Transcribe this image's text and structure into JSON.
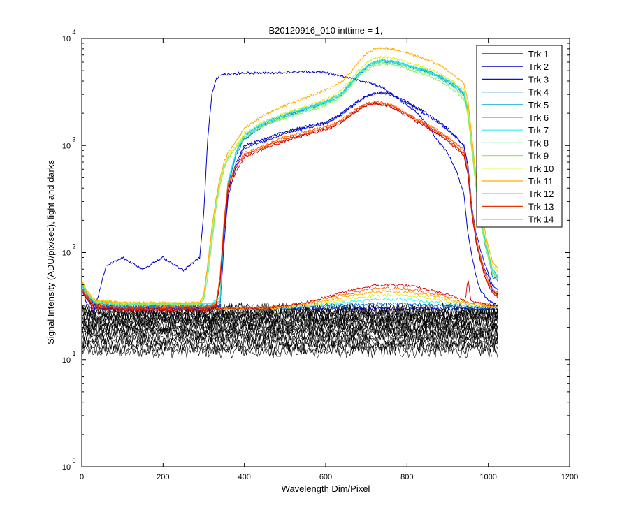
{
  "chart_data": {
    "type": "line",
    "title": "B20120916_010 inttime = 1,",
    "xlabel": "Wavelength Dim/Pixel",
    "ylabel": "Signal Intensity (ADU/pix/sec), light and darks",
    "xlim": [
      0,
      1200
    ],
    "ylim": [
      1,
      10000
    ],
    "yscale": "log",
    "x_ticks": [
      0,
      200,
      400,
      600,
      800,
      1000,
      1200
    ],
    "x_tick_labels": [
      "0",
      "200",
      "400",
      "600",
      "800",
      "1000",
      "1200"
    ],
    "y_ticks": [
      1,
      10,
      100,
      1000,
      10000
    ],
    "y_tick_labels": [
      {
        "base": "10",
        "exp": "0"
      },
      {
        "base": "10",
        "exp": "1"
      },
      {
        "base": "10",
        "exp": "2"
      },
      {
        "base": "10",
        "exp": "3"
      },
      {
        "base": "10",
        "exp": "4"
      }
    ],
    "legend_position": "top-right",
    "x": [
      0,
      10,
      30,
      60,
      100,
      150,
      200,
      250,
      290,
      300,
      310,
      320,
      330,
      340,
      350,
      360,
      380,
      400,
      450,
      500,
      550,
      600,
      620,
      640,
      660,
      680,
      700,
      720,
      740,
      760,
      780,
      800,
      820,
      840,
      860,
      880,
      900,
      920,
      940,
      950,
      960,
      970,
      980,
      990,
      1000,
      1010,
      1024
    ],
    "series": [
      {
        "name": "Trk 1",
        "color": "#0000aa",
        "values": [
          45,
          40,
          33,
          32,
          31,
          31,
          31,
          31,
          31,
          31,
          31,
          31,
          31,
          32,
          150,
          380,
          700,
          1000,
          1150,
          1350,
          1500,
          1650,
          1800,
          2000,
          2300,
          2600,
          2900,
          3100,
          3150,
          3050,
          2800,
          2550,
          2300,
          2100,
          1850,
          1650,
          1450,
          1200,
          1000,
          650,
          250,
          130,
          90,
          70,
          60,
          45,
          40
        ]
      },
      {
        "name": "Trk 2",
        "color": "#0000cc",
        "values": [
          55,
          35,
          28,
          75,
          90,
          70,
          90,
          68,
          90,
          230,
          1200,
          3000,
          4200,
          4500,
          4600,
          4600,
          4700,
          4750,
          4750,
          4800,
          4900,
          4800,
          4600,
          4400,
          4300,
          4100,
          3900,
          3700,
          3500,
          3100,
          2700,
          2400,
          2100,
          1750,
          1350,
          1050,
          850,
          600,
          350,
          150,
          90,
          60,
          45,
          40,
          36,
          34,
          32
        ]
      },
      {
        "name": "Trk 3",
        "color": "#0011ee",
        "values": [
          44,
          38,
          31,
          30,
          30,
          30,
          30,
          30,
          30,
          30,
          30,
          30,
          31,
          32,
          120,
          330,
          650,
          950,
          1100,
          1300,
          1450,
          1600,
          1750,
          1950,
          2250,
          2550,
          2850,
          3050,
          3050,
          2950,
          2750,
          2500,
          2250,
          2000,
          1800,
          1600,
          1400,
          1200,
          1000,
          650,
          260,
          150,
          110,
          80,
          65,
          50,
          45
        ]
      },
      {
        "name": "Trk 4",
        "color": "#0077dd",
        "values": [
          46,
          40,
          33,
          32,
          31,
          31,
          31,
          31,
          31,
          31,
          31,
          31,
          31,
          32,
          160,
          420,
          820,
          1150,
          1550,
          1850,
          2150,
          2500,
          2700,
          3000,
          3700,
          4500,
          5300,
          5900,
          6100,
          6000,
          5800,
          5500,
          5200,
          5000,
          4700,
          4300,
          3900,
          3500,
          3000,
          2000,
          900,
          400,
          200,
          130,
          90,
          60,
          55
        ]
      },
      {
        "name": "Trk 5",
        "color": "#00aacc",
        "values": [
          48,
          42,
          34,
          33,
          32,
          32,
          32,
          32,
          32,
          32,
          32,
          32,
          33,
          34,
          170,
          440,
          850,
          1200,
          1600,
          1900,
          2200,
          2550,
          2750,
          3050,
          3750,
          4600,
          5400,
          6000,
          6200,
          6100,
          5900,
          5600,
          5300,
          5100,
          4800,
          4400,
          4000,
          3600,
          3100,
          2100,
          950,
          420,
          210,
          140,
          95,
          65,
          58
        ]
      },
      {
        "name": "Trk 6",
        "color": "#00ccdd",
        "values": [
          50,
          43,
          35,
          34,
          33,
          33,
          33,
          33,
          33,
          33,
          33,
          33,
          34,
          35,
          180,
          460,
          880,
          1250,
          1650,
          1950,
          2250,
          2600,
          2800,
          3100,
          3800,
          4650,
          5450,
          6050,
          6250,
          6150,
          5950,
          5650,
          5350,
          5150,
          4850,
          4450,
          4050,
          3650,
          3150,
          2150,
          980,
          440,
          220,
          145,
          100,
          70,
          60
        ]
      },
      {
        "name": "Trk 7",
        "color": "#33eeee",
        "values": [
          50,
          43,
          35,
          34,
          33,
          33,
          33,
          33,
          33,
          33,
          33,
          34,
          36,
          38,
          190,
          470,
          900,
          1250,
          1650,
          1950,
          2200,
          2550,
          2750,
          3050,
          3750,
          4600,
          5400,
          6000,
          6200,
          6100,
          5900,
          5600,
          5300,
          5100,
          4800,
          4400,
          4000,
          3600,
          3100,
          2100,
          950,
          430,
          215,
          140,
          95,
          68,
          60
        ]
      },
      {
        "name": "Trk 8",
        "color": "#66ee99",
        "values": [
          52,
          44,
          35,
          34,
          33,
          33,
          33,
          33,
          33,
          36,
          60,
          120,
          260,
          420,
          600,
          750,
          950,
          1200,
          1550,
          1850,
          2100,
          2450,
          2700,
          3000,
          3650,
          4450,
          5200,
          5800,
          6000,
          5900,
          5700,
          5400,
          5100,
          4900,
          4600,
          4200,
          3800,
          3400,
          2900,
          2000,
          900,
          410,
          205,
          135,
          90,
          66,
          58
        ]
      },
      {
        "name": "Trk 9",
        "color": "#99ee55",
        "values": [
          53,
          44,
          35,
          34,
          33,
          33,
          33,
          33,
          33,
          38,
          70,
          140,
          280,
          440,
          620,
          770,
          970,
          1200,
          1550,
          1800,
          2050,
          2350,
          2600,
          2900,
          3500,
          4300,
          5000,
          5600,
          5800,
          5700,
          5500,
          5200,
          4900,
          4700,
          4400,
          4000,
          3600,
          3200,
          2700,
          1900,
          860,
          400,
          200,
          130,
          88,
          64,
          56
        ]
      },
      {
        "name": "Trk 10",
        "color": "#ddee22",
        "values": [
          54,
          45,
          36,
          35,
          34,
          34,
          34,
          34,
          34,
          40,
          80,
          160,
          300,
          470,
          650,
          800,
          1000,
          1300,
          1700,
          2000,
          2300,
          2700,
          2950,
          3300,
          4000,
          5000,
          5900,
          6500,
          6700,
          6600,
          6300,
          6000,
          5700,
          5400,
          5100,
          4700,
          4300,
          3800,
          3300,
          2300,
          1050,
          470,
          235,
          155,
          105,
          75,
          65
        ]
      },
      {
        "name": "Trk 11",
        "color": "#ffaa00",
        "values": [
          55,
          46,
          36,
          35,
          34,
          34,
          34,
          34,
          34,
          40,
          80,
          170,
          320,
          500,
          700,
          850,
          1100,
          1450,
          1950,
          2350,
          2800,
          3300,
          3550,
          3950,
          4800,
          6000,
          7200,
          8000,
          8200,
          8000,
          7700,
          7300,
          6900,
          6500,
          6100,
          5600,
          5000,
          4400,
          3800,
          2600,
          1150,
          520,
          260,
          170,
          115,
          82,
          70
        ]
      },
      {
        "name": "Trk 12",
        "color": "#ff6600",
        "values": [
          46,
          40,
          33,
          32,
          31,
          31,
          31,
          31,
          31,
          31,
          31,
          32,
          34,
          60,
          200,
          450,
          650,
          850,
          1000,
          1200,
          1350,
          1500,
          1600,
          1750,
          2000,
          2250,
          2450,
          2550,
          2500,
          2400,
          2200,
          2000,
          1800,
          1650,
          1500,
          1350,
          1200,
          1050,
          900,
          600,
          250,
          140,
          95,
          70,
          55,
          46,
          42
        ]
      },
      {
        "name": "Trk 13",
        "color": "#ee3300",
        "values": [
          45,
          39,
          32,
          31,
          30,
          30,
          30,
          30,
          30,
          30,
          30,
          31,
          32,
          55,
          180,
          420,
          620,
          820,
          980,
          1150,
          1300,
          1450,
          1550,
          1700,
          1950,
          2200,
          2400,
          2500,
          2450,
          2350,
          2150,
          1950,
          1750,
          1600,
          1450,
          1300,
          1150,
          1000,
          850,
          560,
          230,
          130,
          90,
          66,
          52,
          44,
          40
        ]
      },
      {
        "name": "Trk 14",
        "color": "#cc0000",
        "values": [
          44,
          38,
          31,
          30,
          29,
          29,
          29,
          29,
          29,
          29,
          29,
          30,
          31,
          50,
          160,
          380,
          580,
          780,
          940,
          1100,
          1250,
          1400,
          1500,
          1650,
          1900,
          2150,
          2350,
          2450,
          2400,
          2300,
          2100,
          1900,
          1700,
          1550,
          1400,
          1250,
          1100,
          950,
          800,
          530,
          220,
          125,
          85,
          62,
          50,
          42,
          38
        ]
      }
    ],
    "dark_traces": {
      "count": 24,
      "value_range": [
        12,
        30
      ],
      "color": "#000000"
    },
    "baseline_traces": {
      "color_order": [
        "Trk 2",
        "Trk 4",
        "Trk 7",
        "Trk 10",
        "Trk 11",
        "Trk 12",
        "Trk 14"
      ],
      "flat_level": 30,
      "bump_center": 760,
      "bump_peak_range": [
        30,
        50
      ],
      "spike_x": 950,
      "spike_level": 60
    }
  }
}
